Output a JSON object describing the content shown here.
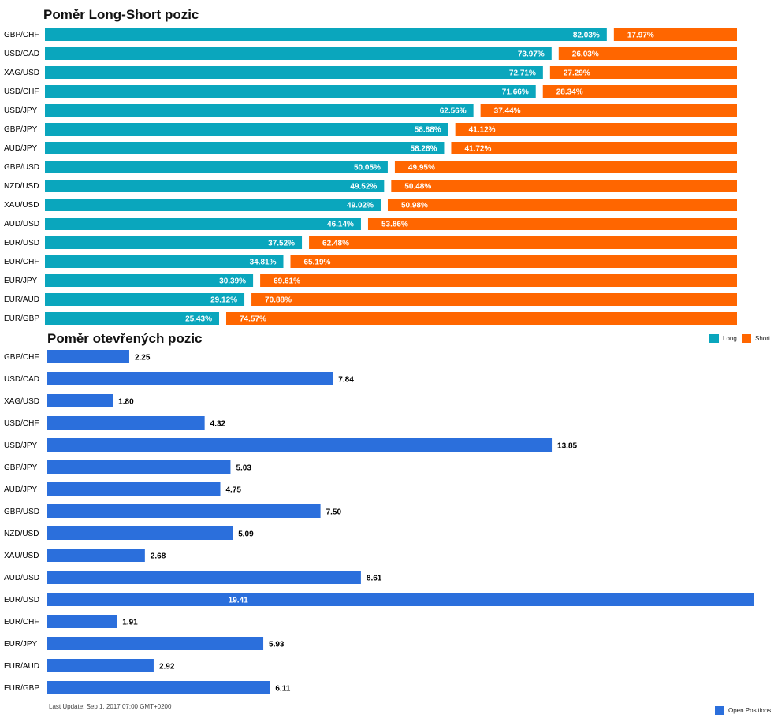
{
  "chart_data": [
    {
      "type": "bar",
      "title": "Poměr Long-Short pozic",
      "categories": [
        "GBP/CHF",
        "USD/CAD",
        "XAG/USD",
        "USD/CHF",
        "USD/JPY",
        "GBP/JPY",
        "AUD/JPY",
        "GBP/USD",
        "NZD/USD",
        "XAU/USD",
        "AUD/USD",
        "EUR/USD",
        "EUR/CHF",
        "EUR/JPY",
        "EUR/AUD",
        "EUR/GBP"
      ],
      "series": [
        {
          "name": "Long",
          "color": "#0aa6bd",
          "values": [
            82.03,
            73.97,
            72.71,
            71.66,
            62.56,
            58.88,
            58.28,
            50.05,
            49.52,
            49.02,
            46.14,
            37.52,
            34.81,
            30.39,
            29.12,
            25.43
          ],
          "labels": [
            "82.03%",
            "73.97%",
            "72.71%",
            "71.66%",
            "62.56%",
            "58.88%",
            "58.28%",
            "50.05%",
            "49.52%",
            "49.02%",
            "46.14%",
            "37.52%",
            "34.81%",
            "30.39%",
            "29.12%",
            "25.43%"
          ]
        },
        {
          "name": "Short",
          "color": "#ff6600",
          "values": [
            17.97,
            26.03,
            27.29,
            28.34,
            37.44,
            41.12,
            41.72,
            49.95,
            50.48,
            50.98,
            53.86,
            62.48,
            65.19,
            69.61,
            70.88,
            74.57
          ],
          "labels": [
            "17.97%",
            "26.03%",
            "27.29%",
            "28.34%",
            "37.44%",
            "41.12%",
            "41.72%",
            "49.95%",
            "50.48%",
            "50.98%",
            "53.86%",
            "62.48%",
            "65.19%",
            "69.61%",
            "70.88%",
            "74.57%"
          ]
        }
      ],
      "stacked": true,
      "orientation": "horizontal",
      "legend": "bottom-right"
    },
    {
      "type": "bar",
      "title": "Poměr otevřených pozic",
      "categories": [
        "GBP/CHF",
        "USD/CAD",
        "XAG/USD",
        "USD/CHF",
        "USD/JPY",
        "GBP/JPY",
        "AUD/JPY",
        "GBP/USD",
        "NZD/USD",
        "XAU/USD",
        "AUD/USD",
        "EUR/USD",
        "EUR/CHF",
        "EUR/JPY",
        "EUR/AUD",
        "EUR/GBP"
      ],
      "series": [
        {
          "name": "Open Positions",
          "color": "#2b6fdc",
          "values": [
            2.25,
            7.84,
            1.8,
            4.32,
            13.85,
            5.03,
            4.75,
            7.5,
            5.09,
            2.68,
            8.61,
            19.41,
            1.91,
            5.93,
            2.92,
            6.11
          ],
          "labels": [
            "2.25",
            "7.84",
            "1.80",
            "4.32",
            "13.85",
            "5.03",
            "4.75",
            "7.50",
            "5.09",
            "2.68",
            "8.61",
            "19.41",
            "1.91",
            "5.93",
            "2.92",
            "6.11"
          ]
        }
      ],
      "orientation": "horizontal",
      "legend": "bottom-right"
    }
  ],
  "legend": {
    "long": "Long",
    "short": "Short",
    "open": "Open Positions"
  },
  "footer": {
    "last_update": "Last Update: Sep 1, 2017 07:00 GMT+0200"
  }
}
